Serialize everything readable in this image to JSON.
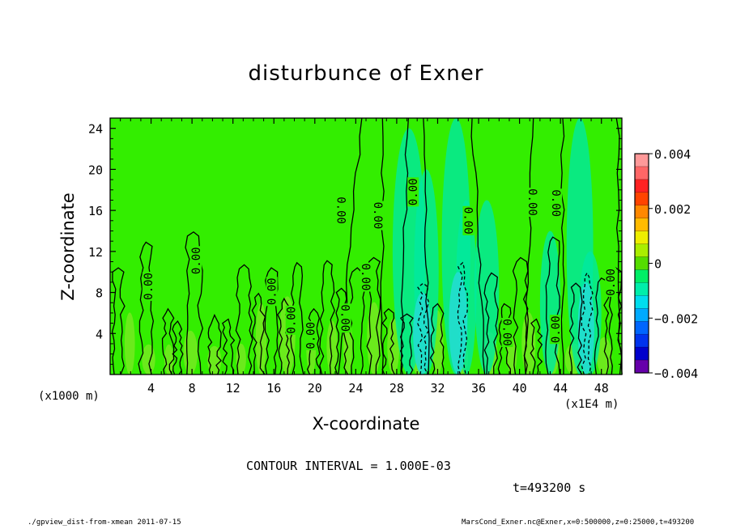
{
  "title": "disturbunce of Exner",
  "footer": {
    "left": "./gpview_dist-from-xmean   2011-07-15",
    "right": "MarsCond_Exner.nc@Exner,x=0:500000,z=0:25000,t=493200"
  },
  "chart_data": {
    "type": "contour",
    "title": "disturbunce of Exner",
    "xlabel": "X-coordinate",
    "ylabel": "Z-coordinate",
    "x_unit_label": "(x1000 m)",
    "x_scale_label": "(x1E4 m)",
    "xlim": [
      0,
      50
    ],
    "ylim": [
      0,
      25
    ],
    "x_ticks": [
      "4",
      "8",
      "12",
      "16",
      "20",
      "24",
      "28",
      "32",
      "36",
      "40",
      "44",
      "48"
    ],
    "x_tick_values": [
      4,
      8,
      12,
      16,
      20,
      24,
      28,
      32,
      36,
      40,
      44,
      48
    ],
    "y_ticks": [
      "4",
      "8",
      "12",
      "16",
      "20",
      "24"
    ],
    "y_tick_values": [
      4,
      8,
      12,
      16,
      20,
      24
    ],
    "contour_interval_text": "CONTOUR INTERVAL = 1.000E-03",
    "time_text": "t=493200 s",
    "contour_labels": [
      {
        "x": 3.7,
        "z": 8.6,
        "text": "0.00",
        "angle": -90
      },
      {
        "x": 8.4,
        "z": 11.1,
        "text": "0.00",
        "angle": -90
      },
      {
        "x": 15.8,
        "z": 8.1,
        "text": "0.00",
        "angle": -90
      },
      {
        "x": 17.7,
        "z": 5.3,
        "text": "0.00",
        "angle": -90
      },
      {
        "x": 19.6,
        "z": 3.8,
        "text": "0.00",
        "angle": -90
      },
      {
        "x": 22.6,
        "z": 16.0,
        "text": "0.00",
        "angle": 90
      },
      {
        "x": 23.0,
        "z": 5.5,
        "text": "0.00",
        "angle": 90
      },
      {
        "x": 25.0,
        "z": 9.5,
        "text": "0.00",
        "angle": 90
      },
      {
        "x": 26.2,
        "z": 15.5,
        "text": "0.00",
        "angle": 90
      },
      {
        "x": 29.6,
        "z": 17.8,
        "text": "0.00",
        "angle": -90
      },
      {
        "x": 35.0,
        "z": 15.0,
        "text": "0.00",
        "angle": 90
      },
      {
        "x": 38.8,
        "z": 4.1,
        "text": "0.00",
        "angle": 90
      },
      {
        "x": 41.3,
        "z": 16.8,
        "text": "0.00",
        "angle": 90
      },
      {
        "x": 43.5,
        "z": 4.4,
        "text": "0.00",
        "angle": -90
      },
      {
        "x": 43.6,
        "z": 16.7,
        "text": "0.00",
        "angle": 90
      },
      {
        "x": 48.9,
        "z": 9.0,
        "text": "0.00",
        "angle": -90
      }
    ],
    "colorbar": {
      "ticks": [
        "0.004",
        "0.002",
        "0",
        "−0.002",
        "−0.004"
      ],
      "tick_values": [
        0.004,
        0.002,
        0,
        -0.002,
        -0.004
      ],
      "range": [
        -0.004,
        0.004
      ],
      "levels": [
        {
          "value": 0.0038,
          "color": "#ff9999"
        },
        {
          "value": 0.0035,
          "color": "#ff6666"
        },
        {
          "value": 0.003,
          "color": "#ff2222"
        },
        {
          "value": 0.0025,
          "color": "#ff4400"
        },
        {
          "value": 0.002,
          "color": "#ff8800"
        },
        {
          "value": 0.0015,
          "color": "#ffbb00"
        },
        {
          "value": 0.001,
          "color": "#eeee00"
        },
        {
          "value": 0.0005,
          "color": "#aaee00"
        },
        {
          "value": 0.0,
          "color": "#55dd00"
        },
        {
          "value": -0.0005,
          "color": "#00ee66"
        },
        {
          "value": -0.001,
          "color": "#00eeaa"
        },
        {
          "value": -0.0015,
          "color": "#00ddee"
        },
        {
          "value": -0.002,
          "color": "#00aaff"
        },
        {
          "value": -0.0025,
          "color": "#0066ff"
        },
        {
          "value": -0.003,
          "color": "#0033ee"
        },
        {
          "value": -0.0035,
          "color": "#0000cc"
        },
        {
          "value": -0.0038,
          "color": "#6600aa"
        }
      ]
    },
    "colors": {
      "background_field": "#33ee00",
      "positive_patch": "#99e833",
      "negative_patch": "#00e8a0",
      "strong_negative_patch": "#22ddd0"
    }
  }
}
